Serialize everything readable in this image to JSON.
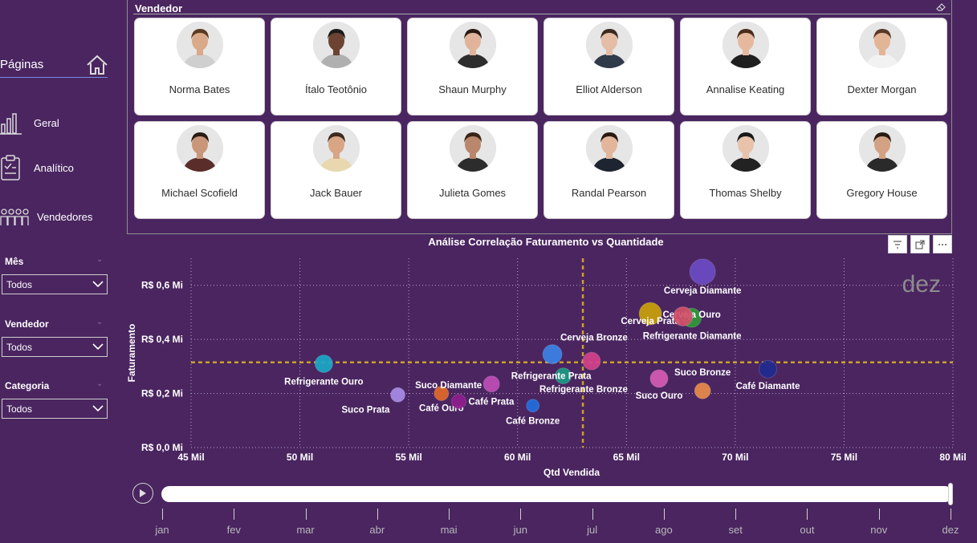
{
  "nav": {
    "title": "Páginas",
    "items": [
      {
        "label": "Geral",
        "icon": "bar-chart-icon"
      },
      {
        "label": "Analítico",
        "icon": "clipboard-icon"
      },
      {
        "label": "Vendedores",
        "icon": "people-icon"
      }
    ]
  },
  "filters": [
    {
      "label": "Mês",
      "value": "Todos"
    },
    {
      "label": "Vendedor",
      "value": "Todos"
    },
    {
      "label": "Categoria",
      "value": "Todos"
    }
  ],
  "vendor_panel": {
    "title": "Vendedor",
    "cards": [
      {
        "name": "Norma Bates",
        "skin": "#d9a98a",
        "hair": "#5b3a22",
        "shirt": "#cfcfcf"
      },
      {
        "name": "Ítalo Teotônio",
        "skin": "#6b4330",
        "hair": "#1b1b1b",
        "shirt": "#b0b0b0"
      },
      {
        "name": "Shaun Murphy",
        "skin": "#e0b39a",
        "hair": "#2a1a12",
        "shirt": "#2d2d2d"
      },
      {
        "name": "Elliot Alderson",
        "skin": "#e4bda4",
        "hair": "#3a2a20",
        "shirt": "#2f3a4a"
      },
      {
        "name": "Annalise Keating",
        "skin": "#e6b89e",
        "hair": "#4a2c1c",
        "shirt": "#1f1f1f"
      },
      {
        "name": "Dexter Morgan",
        "skin": "#e3b597",
        "hair": "#5a3a26",
        "shirt": "#f2f2f2"
      },
      {
        "name": "Michael Scofield",
        "skin": "#c9967a",
        "hair": "#2b1c14",
        "shirt": "#5a2d2a"
      },
      {
        "name": "Jack Bauer",
        "skin": "#d8a585",
        "hair": "#3b2a1e",
        "shirt": "#e9d7b0"
      },
      {
        "name": "Julieta Gomes",
        "skin": "#b9876c",
        "hair": "#3a2418",
        "shirt": "#2c2c2c"
      },
      {
        "name": "Randal Pearson",
        "skin": "#e2b69a",
        "hair": "#2a1a12",
        "shirt": "#1f2530"
      },
      {
        "name": "Thomas Shelby",
        "skin": "#e8c2ab",
        "hair": "#1a1a1a",
        "shirt": "#222222"
      },
      {
        "name": "Gregory House",
        "skin": "#d3a184",
        "hair": "#2a1c14",
        "shirt": "#2a2a2a"
      }
    ]
  },
  "visual_buttons": [
    "filter-icon",
    "focus-mode-icon",
    "more-options-icon"
  ],
  "chart_data": {
    "type": "scatter",
    "title": "Análise Correlação Faturamento vs Quantidade",
    "xlabel": "Qtd Vendida",
    "ylabel": "Faturamento",
    "xlim": [
      45000,
      80000
    ],
    "ylim": [
      0,
      0.7
    ],
    "x_ticks": [
      {
        "v": 45000,
        "label": "45 Mil"
      },
      {
        "v": 50000,
        "label": "50 Mil"
      },
      {
        "v": 55000,
        "label": "55 Mil"
      },
      {
        "v": 60000,
        "label": "60 Mil"
      },
      {
        "v": 65000,
        "label": "65 Mil"
      },
      {
        "v": 70000,
        "label": "70 Mil"
      },
      {
        "v": 75000,
        "label": "75 Mil"
      },
      {
        "v": 80000,
        "label": "80 Mil"
      }
    ],
    "y_ticks": [
      {
        "v": 0,
        "label": "R$ 0,0 Mi"
      },
      {
        "v": 0.2,
        "label": "R$ 0,2 Mi"
      },
      {
        "v": 0.4,
        "label": "R$ 0,4 Mi"
      },
      {
        "v": 0.6,
        "label": "R$ 0,6 Mi"
      }
    ],
    "play_axis_value": "dez",
    "x_reference": 63000,
    "y_reference": 0.315,
    "grid": true,
    "points": [
      {
        "label": "Cerveja Diamante",
        "x": 68500,
        "y": 0.65,
        "size": 16,
        "color": "#6a4bc4",
        "anchor": "middle",
        "dy": 27
      },
      {
        "label": "Cerveja Prata",
        "x": 66100,
        "y": 0.495,
        "size": 14,
        "color": "#c9a10a",
        "anchor": "middle",
        "dy": 13
      },
      {
        "label": "Cerveja Ouro",
        "x": 68000,
        "y": 0.48,
        "size": 12,
        "color": "#2e9b3a",
        "anchor": "middle",
        "dy": 0
      },
      {
        "label": "Refrigerante Diamante",
        "x": 67600,
        "y": 0.485,
        "size": 12,
        "color": "#d2506a",
        "anchor": "start",
        "dx": -50,
        "dy": 28
      },
      {
        "label": "Cerveja Bronze",
        "x": 61600,
        "y": 0.345,
        "size": 12,
        "color": "#3b82e6",
        "anchor": "start",
        "dx": 10,
        "dy": -17
      },
      {
        "label": "Refrigerante Bronze",
        "x": 63400,
        "y": 0.32,
        "size": 11,
        "color": "#d2418c",
        "anchor": "middle",
        "dx": -10,
        "dy": 39
      },
      {
        "label": "Refrigerante Prata",
        "x": 62100,
        "y": 0.265,
        "size": 10,
        "color": "#1b9a86",
        "anchor": "middle",
        "dx": -15,
        "dy": 4
      },
      {
        "label": "Refrigerante Ouro",
        "x": 51100,
        "y": 0.31,
        "size": 11,
        "color": "#1aa7c8",
        "anchor": "middle",
        "dy": 26
      },
      {
        "label": "Suco Prata",
        "x": 54500,
        "y": 0.195,
        "size": 9,
        "color": "#a78be8",
        "anchor": "end",
        "dx": -10,
        "dy": 22
      },
      {
        "label": "Café Ouro",
        "x": 56500,
        "y": 0.2,
        "size": 9,
        "color": "#e0682a",
        "anchor": "middle",
        "dy": 22
      },
      {
        "label": "Café Prata",
        "x": 57300,
        "y": 0.17,
        "size": 9,
        "color": "#8e1d8e",
        "anchor": "start",
        "dx": 12,
        "dy": 4
      },
      {
        "label": "Suco Diamante",
        "x": 58800,
        "y": 0.235,
        "size": 10,
        "color": "#bf4db8",
        "anchor": "end",
        "dx": -12,
        "dy": 5
      },
      {
        "label": "Café Bronze",
        "x": 60700,
        "y": 0.155,
        "size": 8,
        "color": "#1f6fe0",
        "anchor": "middle",
        "dy": 23
      },
      {
        "label": "Suco Ouro",
        "x": 66500,
        "y": 0.255,
        "size": 11,
        "color": "#d65ab5",
        "anchor": "middle",
        "dy": 25
      },
      {
        "label": "Suco Bronze",
        "x": 68500,
        "y": 0.21,
        "size": 10,
        "color": "#e88a4a",
        "anchor": "middle",
        "dy": -19
      },
      {
        "label": "Café Diamante",
        "x": 71500,
        "y": 0.29,
        "size": 11,
        "color": "#1f2a8f",
        "anchor": "middle",
        "dy": 25
      }
    ]
  },
  "play_axis": {
    "months": [
      "jan",
      "fev",
      "mar",
      "abr",
      "mai",
      "jun",
      "jul",
      "ago",
      "set",
      "out",
      "nov",
      "dez"
    ],
    "current": "dez",
    "progress": 1.0
  }
}
